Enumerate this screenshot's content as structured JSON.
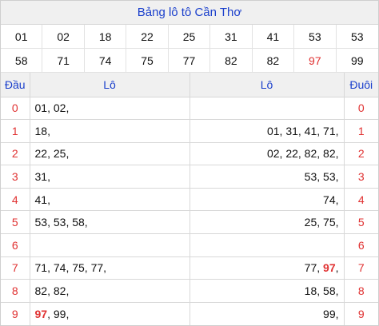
{
  "title": "Bảng lô tô Cần Thơ",
  "numbers": [
    {
      "v": "01",
      "hl": false
    },
    {
      "v": "02",
      "hl": false
    },
    {
      "v": "18",
      "hl": false
    },
    {
      "v": "22",
      "hl": false
    },
    {
      "v": "25",
      "hl": false
    },
    {
      "v": "31",
      "hl": false
    },
    {
      "v": "41",
      "hl": false
    },
    {
      "v": "53",
      "hl": false
    },
    {
      "v": "53",
      "hl": false
    },
    {
      "v": "58",
      "hl": false
    },
    {
      "v": "71",
      "hl": false
    },
    {
      "v": "74",
      "hl": false
    },
    {
      "v": "75",
      "hl": false
    },
    {
      "v": "77",
      "hl": false
    },
    {
      "v": "82",
      "hl": false
    },
    {
      "v": "82",
      "hl": false
    },
    {
      "v": "97",
      "hl": true
    },
    {
      "v": "99",
      "hl": false
    }
  ],
  "headers": {
    "dau": "Đầu",
    "lo_left": "Lô",
    "lo_right": "Lô",
    "duoi": "Đuôi"
  },
  "rows": [
    {
      "dau": "0",
      "left": [
        {
          "v": "01",
          "hl": false
        },
        {
          "v": "02",
          "hl": false
        }
      ],
      "right": [],
      "duoi": "0"
    },
    {
      "dau": "1",
      "left": [
        {
          "v": "18",
          "hl": false
        }
      ],
      "right": [
        {
          "v": "01",
          "hl": false
        },
        {
          "v": "31",
          "hl": false
        },
        {
          "v": "41",
          "hl": false
        },
        {
          "v": "71",
          "hl": false
        }
      ],
      "duoi": "1"
    },
    {
      "dau": "2",
      "left": [
        {
          "v": "22",
          "hl": false
        },
        {
          "v": "25",
          "hl": false
        }
      ],
      "right": [
        {
          "v": "02",
          "hl": false
        },
        {
          "v": "22",
          "hl": false
        },
        {
          "v": "82",
          "hl": false
        },
        {
          "v": "82",
          "hl": false
        }
      ],
      "duoi": "2"
    },
    {
      "dau": "3",
      "left": [
        {
          "v": "31",
          "hl": false
        }
      ],
      "right": [
        {
          "v": "53",
          "hl": false
        },
        {
          "v": "53",
          "hl": false
        }
      ],
      "duoi": "3"
    },
    {
      "dau": "4",
      "left": [
        {
          "v": "41",
          "hl": false
        }
      ],
      "right": [
        {
          "v": "74",
          "hl": false
        }
      ],
      "duoi": "4"
    },
    {
      "dau": "5",
      "left": [
        {
          "v": "53",
          "hl": false
        },
        {
          "v": "53",
          "hl": false
        },
        {
          "v": "58",
          "hl": false
        }
      ],
      "right": [
        {
          "v": "25",
          "hl": false
        },
        {
          "v": "75",
          "hl": false
        }
      ],
      "duoi": "5"
    },
    {
      "dau": "6",
      "left": [],
      "right": [],
      "duoi": "6"
    },
    {
      "dau": "7",
      "left": [
        {
          "v": "71",
          "hl": false
        },
        {
          "v": "74",
          "hl": false
        },
        {
          "v": "75",
          "hl": false
        },
        {
          "v": "77",
          "hl": false
        }
      ],
      "right": [
        {
          "v": "77",
          "hl": false
        },
        {
          "v": "97",
          "hl": true
        }
      ],
      "duoi": "7"
    },
    {
      "dau": "8",
      "left": [
        {
          "v": "82",
          "hl": false
        },
        {
          "v": "82",
          "hl": false
        }
      ],
      "right": [
        {
          "v": "18",
          "hl": false
        },
        {
          "v": "58",
          "hl": false
        }
      ],
      "duoi": "8"
    },
    {
      "dau": "9",
      "left": [
        {
          "v": "97",
          "hl": true
        },
        {
          "v": "99",
          "hl": false
        }
      ],
      "right": [
        {
          "v": "99",
          "hl": false
        }
      ],
      "duoi": "9"
    }
  ],
  "colors": {
    "title_blue": "#1a3fcc",
    "highlight_red": "#e03131",
    "header_bg": "#f0f0f0"
  }
}
